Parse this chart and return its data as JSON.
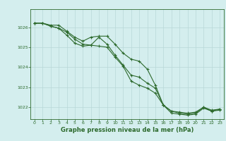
{
  "title": "Graphe pression niveau de la mer (hPa)",
  "background_color": "#d4eeee",
  "grid_color": "#b8d8d8",
  "line_color": "#2d6a2d",
  "ylim": [
    1021.4,
    1026.9
  ],
  "xlim": [
    -0.5,
    23.5
  ],
  "yticks": [
    1022,
    1023,
    1024,
    1025,
    1026
  ],
  "xticks": [
    0,
    1,
    2,
    3,
    4,
    5,
    6,
    7,
    8,
    9,
    10,
    11,
    12,
    13,
    14,
    15,
    16,
    17,
    18,
    19,
    20,
    21,
    22,
    23
  ],
  "series": [
    [
      1026.2,
      1026.2,
      1026.1,
      1026.1,
      1025.8,
      1025.5,
      1025.3,
      1025.5,
      1025.55,
      1025.55,
      1025.15,
      1024.7,
      1024.4,
      1024.3,
      1023.9,
      1023.1,
      1022.1,
      1021.8,
      1021.75,
      1021.7,
      1021.75,
      1022.0,
      1021.85,
      1021.9
    ],
    [
      1026.2,
      1026.2,
      1026.05,
      1025.95,
      1025.75,
      1025.4,
      1025.15,
      1025.1,
      1025.05,
      1025.0,
      1024.5,
      1024.05,
      1023.3,
      1023.1,
      1022.95,
      1022.7,
      1022.1,
      1021.8,
      1021.7,
      1021.65,
      1021.7,
      1022.0,
      1021.8,
      1021.9
    ],
    [
      1026.2,
      1026.2,
      1026.05,
      1025.95,
      1025.6,
      1025.2,
      1025.05,
      1025.1,
      1025.5,
      1025.15,
      1024.6,
      1024.1,
      1023.6,
      1023.5,
      1023.2,
      1022.95,
      1022.1,
      1021.7,
      1021.65,
      1021.6,
      1021.65,
      1021.95,
      1021.8,
      1021.85
    ]
  ],
  "ylabel_fontsize": 5,
  "xlabel_fontsize": 6,
  "title_fontsize": 6
}
